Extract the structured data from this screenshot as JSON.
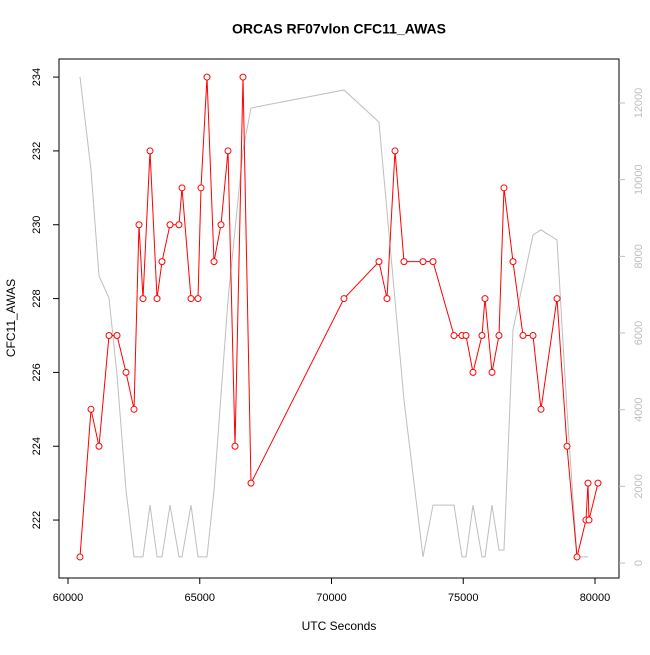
{
  "chart_data": {
    "type": "line",
    "title": "ORCAS RF07vlon CFC11_AWAS",
    "x_label": "UTC Seconds",
    "y_label": "CFC11_AWAS",
    "xlim": [
      59658,
      80911
    ],
    "xticks": [
      60000,
      65000,
      70000,
      75000,
      80000
    ],
    "ylim": [
      220.43,
      234.49
    ],
    "yticks": [
      222,
      224,
      226,
      228,
      230,
      232,
      234
    ],
    "y2lim": [
      -391,
      13148
    ],
    "y2ticks": [
      0,
      2000,
      4000,
      6000,
      8000,
      10000,
      12000
    ],
    "series": [
      {
        "color": "#ff0000",
        "markers": true,
        "x": [
          60455,
          60873,
          61176,
          61556,
          61860,
          62201,
          62505,
          62694,
          62846,
          63112,
          63378,
          63567,
          63871,
          64212,
          64326,
          64668,
          64933,
          65047,
          65275,
          65541,
          65806,
          66072,
          66338,
          66641,
          66945,
          70474,
          71802,
          72106,
          72410,
          72751,
          73472,
          73852,
          74649,
          74952,
          75104,
          75370,
          75711,
          75825,
          76091,
          76356,
          76546,
          76888,
          77267,
          77647,
          77950,
          78558,
          78937,
          79317,
          79658,
          79734,
          79772,
          80114
        ],
        "values": [
          221,
          225,
          224,
          227,
          227,
          226,
          225,
          230,
          228,
          232,
          228,
          229,
          230,
          230,
          231,
          228,
          228,
          231,
          234,
          229,
          230,
          232,
          224,
          234,
          223,
          228,
          229,
          228,
          232,
          229,
          229,
          229,
          227,
          227,
          227,
          226,
          227,
          228,
          226,
          227,
          231,
          229,
          227,
          227,
          225,
          228,
          224,
          221,
          222,
          223,
          222,
          223
        ]
      },
      {
        "color": "#bebebe",
        "axis": "y2",
        "markers": false,
        "x": [
          60455,
          60873,
          61176,
          61556,
          61860,
          62201,
          62505,
          62846,
          63112,
          63378,
          63567,
          63871,
          64212,
          64326,
          64668,
          64933,
          65275,
          65541,
          66072,
          66641,
          66945,
          70474,
          71802,
          72751,
          73472,
          73852,
          74649,
          74952,
          75104,
          75370,
          75711,
          75825,
          76091,
          76356,
          76546,
          76888,
          77647,
          77950,
          78558,
          78937,
          79317,
          79734
        ],
        "values": [
          12680,
          10250,
          7490,
          6910,
          4900,
          1900,
          160,
          160,
          1510,
          160,
          160,
          1510,
          160,
          160,
          1510,
          160,
          160,
          1900,
          6860,
          10770,
          11870,
          12340,
          11500,
          4250,
          160,
          1510,
          1510,
          160,
          160,
          1510,
          160,
          160,
          1510,
          340,
          340,
          6080,
          8560,
          8690,
          8430,
          3990,
          160,
          160
        ]
      }
    ]
  }
}
